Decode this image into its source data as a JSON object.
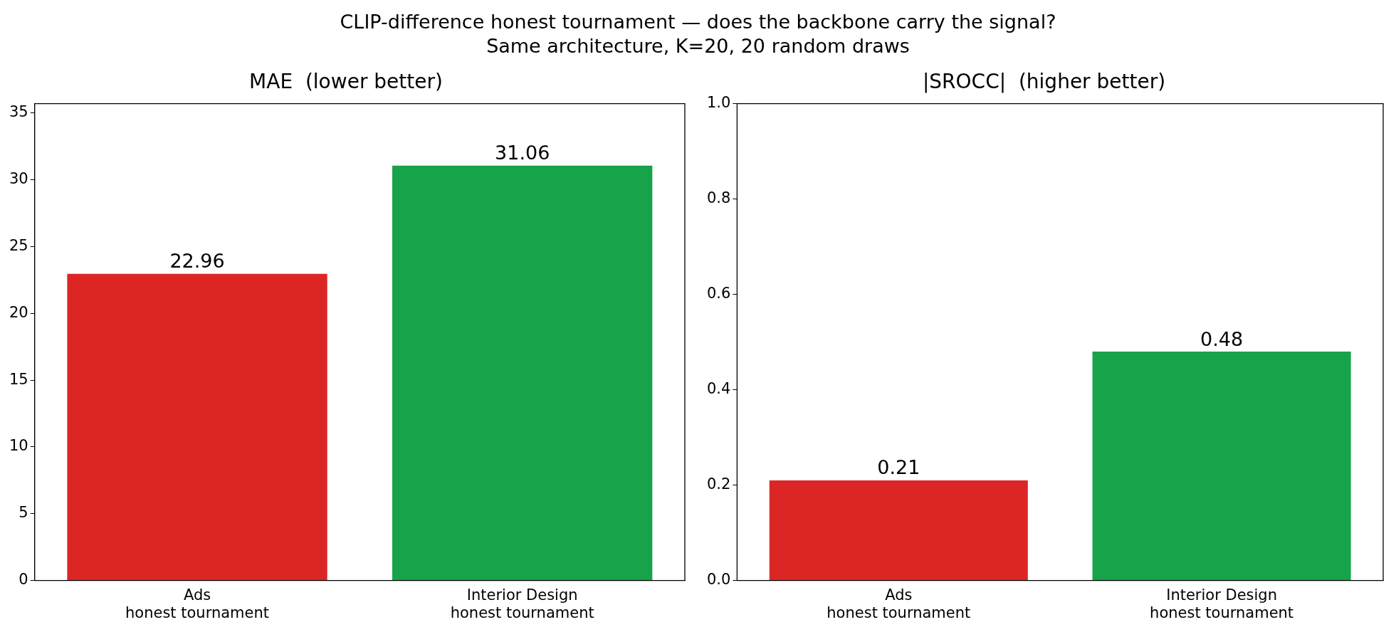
{
  "chart_data": [
    {
      "type": "bar",
      "title": "MAE  (lower better)",
      "annotations": [
        "CLIP-difference honest tournament — does the backbone carry the signal?",
        "Same architecture, K=20, 20 random draws"
      ],
      "categories": [
        "Ads\nhonest tournament",
        "Interior Design\nhonest tournament"
      ],
      "values": [
        22.96,
        31.06
      ],
      "colors": [
        "#dc2626",
        "#16a34a"
      ],
      "ylim": [
        0,
        35.7
      ],
      "yticks": [
        0,
        5,
        10,
        15,
        20,
        25,
        30,
        35
      ],
      "grid": false,
      "legend": false,
      "data_labels": true
    },
    {
      "type": "bar",
      "title": "|SROCC|  (higher better)",
      "categories": [
        "Ads\nhonest tournament",
        "Interior Design\nhonest tournament"
      ],
      "values": [
        0.21,
        0.48
      ],
      "colors": [
        "#dc2626",
        "#16a34a"
      ],
      "ylim": [
        0,
        1.0
      ],
      "yticks": [
        {
          "value": 0,
          "label": "0.0"
        },
        {
          "value": 0.2,
          "label": "0.2"
        },
        {
          "value": 0.4,
          "label": "0.4"
        },
        {
          "value": 0.6,
          "label": "0.6"
        },
        {
          "value": 0.8,
          "label": "0.8"
        },
        {
          "value": 1.0,
          "label": "1.0"
        }
      ],
      "grid": false,
      "legend": false,
      "data_labels": true
    }
  ]
}
